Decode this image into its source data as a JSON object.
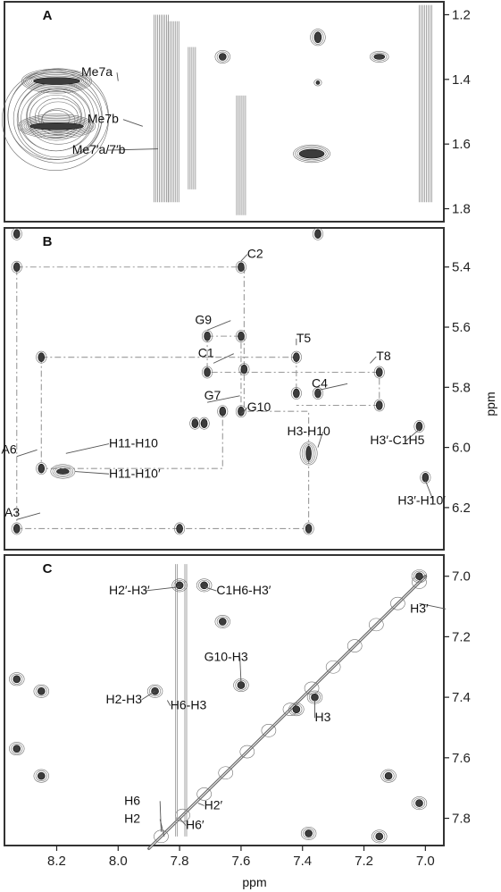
{
  "chart_data": {
    "type": "contour",
    "x_axis": {
      "label": "ppm",
      "range": [
        8.37,
        6.94
      ],
      "reversed": true,
      "ticks": [
        8.2,
        8.0,
        7.8,
        7.6,
        7.4,
        7.2,
        7.0
      ],
      "tick_labels": [
        "8.2",
        "8.0",
        "7.8",
        "7.6",
        "7.4",
        "7.2",
        "7.0"
      ]
    },
    "y_axis_label": "ppm",
    "panels": [
      {
        "id": "A",
        "letter": "A",
        "y_range": [
          1.16,
          1.84
        ],
        "y_ticks": [
          1.2,
          1.4,
          1.6,
          1.8
        ],
        "y_tick_labels": [
          "1.2",
          "1.4",
          "1.6",
          "1.8"
        ],
        "annotations": [
          {
            "text": "Me7a",
            "x": 8.0,
            "y": 1.405,
            "tx": 8.12,
            "ty": 1.39
          },
          {
            "text": "Me7b",
            "x": 7.92,
            "y": 1.545,
            "tx": 8.1,
            "ty": 1.535
          },
          {
            "text": "Me7′a/7′b",
            "x": 7.87,
            "y": 1.615,
            "tx": 8.15,
            "ty": 1.63
          }
        ]
      },
      {
        "id": "B",
        "letter": "B",
        "y_range": [
          5.27,
          6.34
        ],
        "y_ticks": [
          5.4,
          5.6,
          5.8,
          6.0,
          6.2
        ],
        "y_tick_labels": [
          "5.4",
          "5.6",
          "5.8",
          "6.0",
          "6.2"
        ],
        "annotations": [
          {
            "text": "C2",
            "x": 7.6,
            "y": 5.38,
            "tx": 7.58,
            "ty": 5.37
          },
          {
            "text": "G9",
            "x": 7.71,
            "y": 5.61,
            "tx": 7.75,
            "ty": 5.59
          },
          {
            "text": "C1",
            "x": 7.69,
            "y": 5.72,
            "tx": 7.74,
            "ty": 5.7
          },
          {
            "text": "T5",
            "x": 7.42,
            "y": 5.66,
            "tx": 7.42,
            "ty": 5.65
          },
          {
            "text": "T8",
            "x": 7.18,
            "y": 5.72,
            "tx": 7.16,
            "ty": 5.71
          },
          {
            "text": "C4",
            "x": 7.35,
            "y": 5.81,
            "tx": 7.37,
            "ty": 5.8
          },
          {
            "text": "G7",
            "x": 7.71,
            "y": 5.85,
            "tx": 7.72,
            "ty": 5.84
          },
          {
            "text": "G10",
            "x": 7.6,
            "y": 5.89,
            "tx": 7.58,
            "ty": 5.88
          },
          {
            "text": "H11-H10",
            "x": 8.17,
            "y": 6.02,
            "tx": 8.03,
            "ty": 6.0
          },
          {
            "text": "A6",
            "x": 8.33,
            "y": 6.03,
            "tx": 8.38,
            "ty": 6.02
          },
          {
            "text": "H11-H10′",
            "x": 8.14,
            "y": 6.08,
            "tx": 8.03,
            "ty": 6.1
          },
          {
            "text": "H3-H10",
            "x": 7.35,
            "y": 6.0,
            "tx": 7.45,
            "ty": 5.96
          },
          {
            "text": "H3′-C1H5",
            "x": 7.02,
            "y": 5.94,
            "tx": 7.18,
            "ty": 5.99
          },
          {
            "text": "H3′-H10′",
            "x": 7.0,
            "y": 6.11,
            "tx": 7.09,
            "ty": 6.19
          },
          {
            "text": "A3",
            "x": 8.33,
            "y": 6.24,
            "tx": 8.37,
            "ty": 6.23
          }
        ]
      },
      {
        "id": "C",
        "letter": "C",
        "y_range": [
          6.93,
          7.89
        ],
        "y_ticks": [
          7.0,
          7.2,
          7.4,
          7.6,
          7.8
        ],
        "y_tick_labels": [
          "7.0",
          "7.2",
          "7.4",
          "7.6",
          "7.8"
        ],
        "annotations": [
          {
            "text": "H2′-H3′",
            "x": 7.8,
            "y": 7.035,
            "tx": 8.03,
            "ty": 7.06
          },
          {
            "text": "C1H6-H3′",
            "x": 7.72,
            "y": 7.035,
            "tx": 7.68,
            "ty": 7.06
          },
          {
            "text": "H3′",
            "x": 7.02,
            "y": 7.09,
            "tx": 7.05,
            "ty": 7.12
          },
          {
            "text": "G10-H3",
            "x": 7.6,
            "y": 7.35,
            "tx": 7.72,
            "ty": 7.28
          },
          {
            "text": "H2-H3",
            "x": 7.88,
            "y": 7.38,
            "tx": 8.04,
            "ty": 7.42
          },
          {
            "text": "H6-H3",
            "x": 7.84,
            "y": 7.41,
            "tx": 7.83,
            "ty": 7.44
          },
          {
            "text": "H3",
            "x": 7.36,
            "y": 7.41,
            "tx": 7.36,
            "ty": 7.48
          },
          {
            "text": "H6",
            "x": 7.86,
            "y": 7.845,
            "tx": 7.98,
            "ty": 7.755
          },
          {
            "text": "H2",
            "x": 7.85,
            "y": 7.86,
            "tx": 7.98,
            "ty": 7.815
          },
          {
            "text": "H2′",
            "x": 7.74,
            "y": 7.75,
            "tx": 7.72,
            "ty": 7.77
          },
          {
            "text": "H6′",
            "x": 7.8,
            "y": 7.8,
            "tx": 7.78,
            "ty": 7.835
          }
        ]
      }
    ],
    "assignment_walk_panel_B": [
      [
        8.33,
        5.4
      ],
      [
        7.59,
        5.4
      ],
      [
        7.59,
        5.88
      ],
      [
        7.38,
        5.88
      ],
      [
        7.38,
        6.27
      ],
      [
        8.33,
        6.27
      ],
      [
        8.33,
        5.4
      ]
    ]
  }
}
